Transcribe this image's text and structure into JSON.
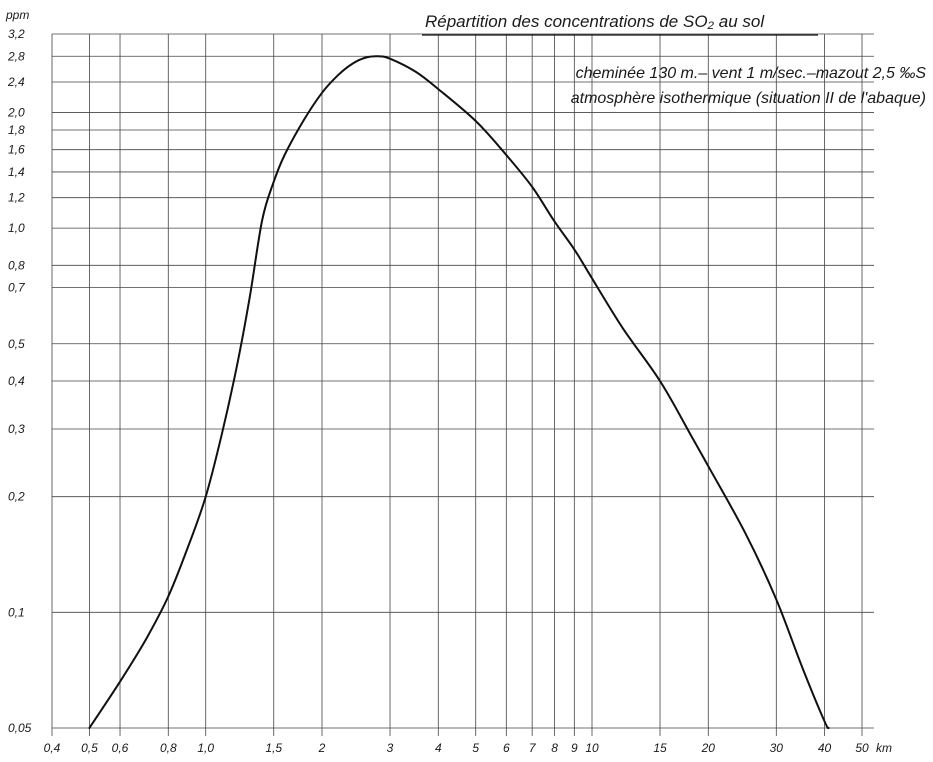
{
  "chart_data": {
    "type": "line",
    "title": "Répartition des concentrations de SO₂ au sol",
    "subtitle_lines": [
      "cheminée 130 m.– vent 1 m/sec.–mazout 2,5 ‰S",
      "atmosphère isothermique (situation II de l'abaque)"
    ],
    "xlabel": "km",
    "ylabel": "ppm",
    "x_scale": "log",
    "y_scale": "log",
    "xlim": [
      0.4,
      50
    ],
    "ylim": [
      0.05,
      3.2
    ],
    "grid": true,
    "x_ticks": [
      {
        "value": 0.4,
        "label": "0,4"
      },
      {
        "value": 0.5,
        "label": "0,5"
      },
      {
        "value": 0.6,
        "label": "0,6"
      },
      {
        "value": 0.8,
        "label": "0,8"
      },
      {
        "value": 1.0,
        "label": "1,0"
      },
      {
        "value": 1.5,
        "label": "1,5"
      },
      {
        "value": 2,
        "label": "2"
      },
      {
        "value": 3,
        "label": "3"
      },
      {
        "value": 4,
        "label": "4"
      },
      {
        "value": 5,
        "label": "5"
      },
      {
        "value": 6,
        "label": "6"
      },
      {
        "value": 7,
        "label": "7"
      },
      {
        "value": 8,
        "label": "8"
      },
      {
        "value": 9,
        "label": "9"
      },
      {
        "value": 10,
        "label": "10"
      },
      {
        "value": 15,
        "label": "15"
      },
      {
        "value": 20,
        "label": "20"
      },
      {
        "value": 30,
        "label": "30"
      },
      {
        "value": 40,
        "label": "40"
      },
      {
        "value": 50,
        "label": "50"
      }
    ],
    "y_ticks": [
      {
        "value": 0.05,
        "label": "0,05"
      },
      {
        "value": 0.1,
        "label": "0,1"
      },
      {
        "value": 0.2,
        "label": "0,2"
      },
      {
        "value": 0.3,
        "label": "0,3"
      },
      {
        "value": 0.4,
        "label": "0,4"
      },
      {
        "value": 0.5,
        "label": "0,5"
      },
      {
        "value": 0.7,
        "label": "0,7"
      },
      {
        "value": 0.8,
        "label": "0,8"
      },
      {
        "value": 1.0,
        "label": "1,0"
      },
      {
        "value": 1.2,
        "label": "1,2"
      },
      {
        "value": 1.4,
        "label": "1,4"
      },
      {
        "value": 1.6,
        "label": "1,6"
      },
      {
        "value": 1.8,
        "label": "1,8"
      },
      {
        "value": 2.0,
        "label": "2,0"
      },
      {
        "value": 2.4,
        "label": "2,4"
      },
      {
        "value": 2.8,
        "label": "2,8"
      },
      {
        "value": 3.2,
        "label": "3,2"
      }
    ],
    "series": [
      {
        "color": "#111111",
        "points": [
          [
            0.5,
            0.05
          ],
          [
            0.6,
            0.066
          ],
          [
            0.7,
            0.085
          ],
          [
            0.8,
            0.11
          ],
          [
            0.9,
            0.148
          ],
          [
            1.0,
            0.2
          ],
          [
            1.1,
            0.29
          ],
          [
            1.2,
            0.43
          ],
          [
            1.3,
            0.66
          ],
          [
            1.4,
            1.05
          ],
          [
            1.5,
            1.32
          ],
          [
            1.6,
            1.55
          ],
          [
            1.8,
            1.92
          ],
          [
            2.0,
            2.25
          ],
          [
            2.2,
            2.5
          ],
          [
            2.4,
            2.68
          ],
          [
            2.6,
            2.78
          ],
          [
            2.8,
            2.8
          ],
          [
            3.0,
            2.76
          ],
          [
            3.5,
            2.55
          ],
          [
            4.0,
            2.3
          ],
          [
            5.0,
            1.9
          ],
          [
            6.0,
            1.55
          ],
          [
            7.0,
            1.28
          ],
          [
            8.0,
            1.04
          ],
          [
            9.0,
            0.88
          ],
          [
            10.0,
            0.74
          ],
          [
            12.0,
            0.55
          ],
          [
            15.0,
            0.4
          ],
          [
            18.0,
            0.29
          ],
          [
            20.0,
            0.24
          ],
          [
            25.0,
            0.16
          ],
          [
            30.0,
            0.108
          ],
          [
            35.0,
            0.072
          ],
          [
            40.0,
            0.052
          ],
          [
            41.0,
            0.05
          ]
        ]
      }
    ]
  }
}
